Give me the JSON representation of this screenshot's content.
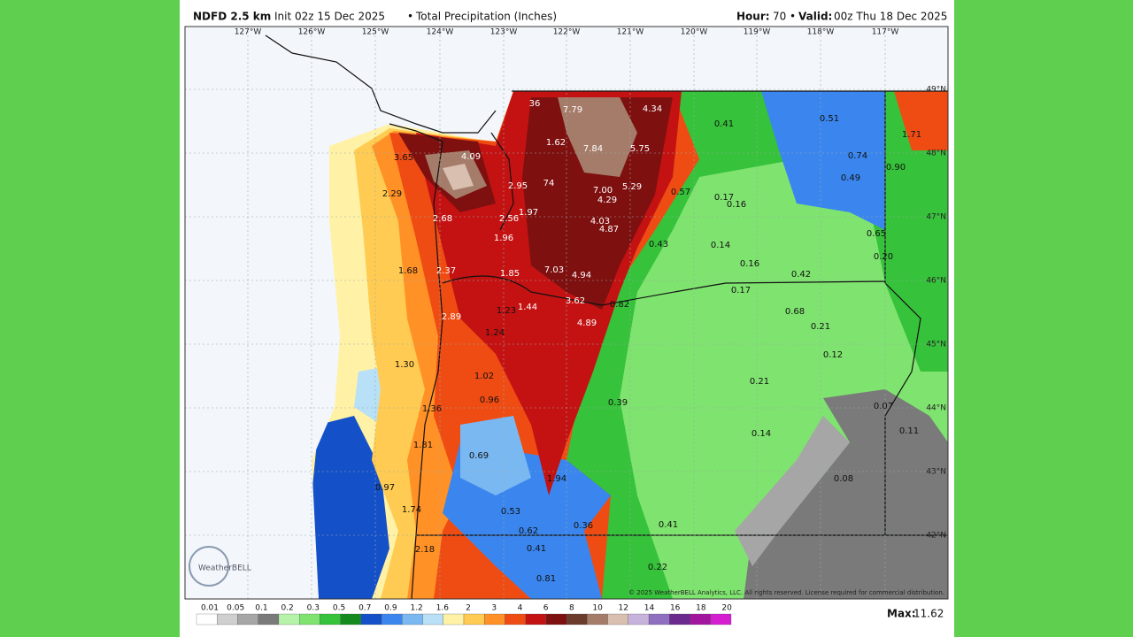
{
  "header": {
    "product": "NDFD 2.5 km",
    "init": "Init 02z 15 Dec 2025",
    "separator": "•",
    "field": "Total Precipitation (Inches)",
    "hour_label": "Hour:",
    "hour": "70",
    "valid_label": "Valid:",
    "valid": "00z Thu 18 Dec 2025"
  },
  "map": {
    "longitudes": [
      "127°W",
      "126°W",
      "125°W",
      "124°W",
      "123°W",
      "122°W",
      "121°W",
      "120°W",
      "119°W",
      "118°W",
      "117°W"
    ],
    "latitudes": [
      "49°N",
      "48°N",
      "47°N",
      "46°N",
      "45°N",
      "44°N",
      "43°N",
      "42°N"
    ],
    "labels": [
      "7.79",
      "4.34",
      "0.41",
      "0.51",
      "1.71",
      "36",
      "1.62",
      "7.84",
      "5.75",
      "3.65",
      "4.09",
      "0.74",
      "0.90",
      "0.49",
      "2.95",
      "74",
      "7.00",
      "5.29",
      "0.57",
      "0.17",
      "0.16",
      "2.29",
      "4.29",
      "1.97",
      "2.68",
      "2.56",
      "4.03",
      "4.87",
      "0.65",
      "1.96",
      "0.43",
      "0.14",
      "0.20",
      "0.16",
      "1.68",
      "2.37",
      "1.85",
      "7.03",
      "4.94",
      "0.42",
      "0.17",
      "1.23",
      "1.44",
      "3.62",
      "0.82",
      "0.68",
      "2.89",
      "4.89",
      "0.21",
      "1.24",
      "0.12",
      "1.30",
      "1.02",
      "0.21",
      "0.96",
      "0.39",
      "1.36",
      "0.07",
      "0.14",
      "0.11",
      "1.81",
      "0.69",
      "1.94",
      "0.08",
      "0.97",
      "1.74",
      "0.53",
      "0.36",
      "0.41",
      "0.62",
      "2.18",
      "0.41",
      "0.22",
      "0.81"
    ],
    "copyright": "© 2025 WeatherBELL Analytics, LLC. All rights reserved. License required for commercial distribution.",
    "logo": "WeatherBELL"
  },
  "colorbar": {
    "labels": [
      "0.01",
      "0.05",
      "0.1",
      "0.2",
      "0.3",
      "0.5",
      "0.7",
      "0.9",
      "1.2",
      "1.6",
      "2",
      "3",
      "4",
      "6",
      "8",
      "10",
      "12",
      "14",
      "16",
      "18",
      "20"
    ],
    "colors": [
      "#ffffff",
      "#cfcfcf",
      "#a6a6a6",
      "#7a7a7a",
      "#b6f2a8",
      "#7fe36f",
      "#36c23a",
      "#158a1e",
      "#1450c8",
      "#3a86ee",
      "#7ab8f2",
      "#b8e0f6",
      "#fff2a6",
      "#ffcb52",
      "#ff9126",
      "#ef4c14",
      "#c41212",
      "#7e1010",
      "#6b3b2c",
      "#a57c6a",
      "#d8bfb0",
      "#c7b2dc",
      "#8f6fc0",
      "#6a2a8e",
      "#a2169e",
      "#d41ed0"
    ],
    "max_label": "Max:",
    "max": "11.62"
  }
}
